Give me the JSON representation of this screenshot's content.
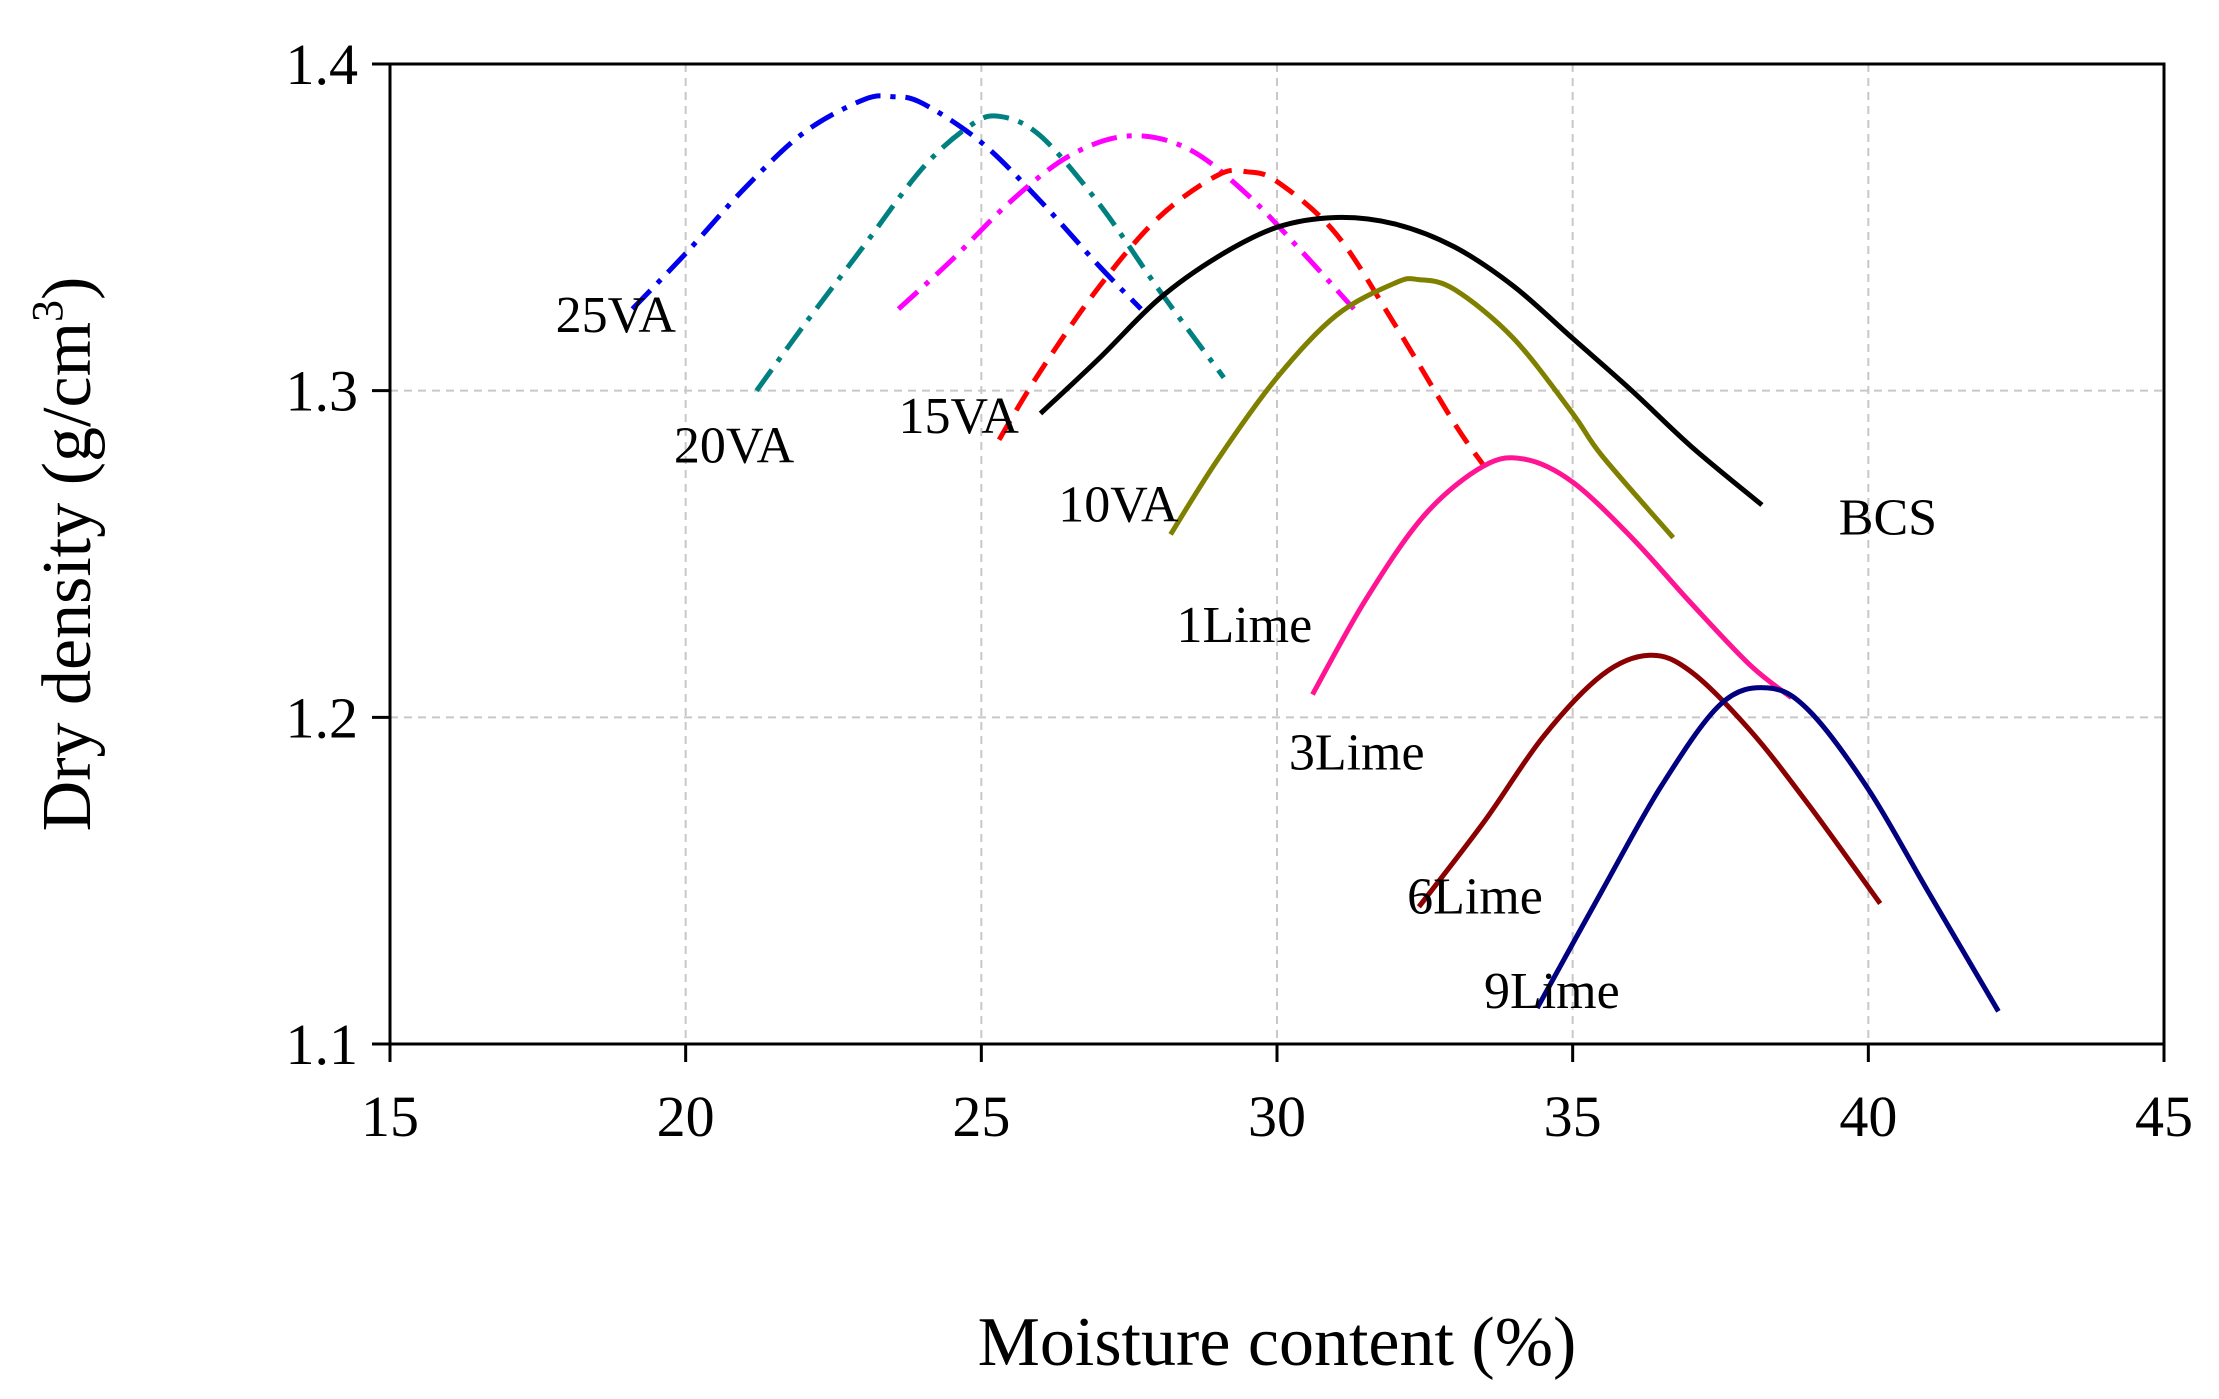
{
  "chart_data": {
    "type": "line",
    "title": "",
    "xlabel": "Moisture content (%)",
    "ylabel_main": "Dry density (g/cm",
    "ylabel_sup": "3",
    "ylabel_close": ")",
    "xlim": [
      15,
      45
    ],
    "ylim": [
      1.1,
      1.4
    ],
    "xticks": [
      15,
      20,
      25,
      30,
      35,
      40,
      45
    ],
    "yticks": [
      1.1,
      1.2,
      1.3,
      1.4
    ],
    "xtick_labels": [
      "15",
      "20",
      "25",
      "30",
      "35",
      "40",
      "45"
    ],
    "ytick_labels": [
      "1.1",
      "1.2",
      "1.3",
      "1.4"
    ],
    "grid": true,
    "series": [
      {
        "name": "25VA",
        "color": "#0000ee",
        "dash": "dashdot",
        "label_at": [
          17.8,
          1.318
        ],
        "x": [
          19.1,
          20.0,
          21.0,
          22.0,
          23.0,
          23.5,
          24.0,
          25.0,
          26.0,
          27.0,
          27.7
        ],
        "y": [
          1.325,
          1.342,
          1.362,
          1.379,
          1.389,
          1.39,
          1.388,
          1.376,
          1.358,
          1.338,
          1.325
        ]
      },
      {
        "name": "20VA",
        "color": "#008080",
        "dash": "dashdot",
        "label_at": [
          19.8,
          1.278
        ],
        "x": [
          21.2,
          22.0,
          23.0,
          24.0,
          24.8,
          25.3,
          26.0,
          27.0,
          28.0,
          29.1
        ],
        "y": [
          1.3,
          1.32,
          1.344,
          1.368,
          1.381,
          1.384,
          1.378,
          1.357,
          1.331,
          1.304
        ]
      },
      {
        "name": "15VA",
        "color": "#ff00ff",
        "dash": "dashdot",
        "label_at": [
          23.6,
          1.287
        ],
        "x": [
          23.6,
          24.5,
          25.5,
          26.5,
          27.5,
          28.5,
          29.5,
          30.5,
          31.3
        ],
        "y": [
          1.325,
          1.34,
          1.358,
          1.372,
          1.378,
          1.374,
          1.36,
          1.341,
          1.325
        ]
      },
      {
        "name": "10VA",
        "color": "#ff0000",
        "dash": "dashed",
        "label_at": [
          26.3,
          1.26
        ],
        "x": [
          25.3,
          26.0,
          27.0,
          28.0,
          29.0,
          29.5,
          30.0,
          31.0,
          32.0,
          33.0,
          33.5
        ],
        "y": [
          1.285,
          1.306,
          1.332,
          1.353,
          1.366,
          1.367,
          1.364,
          1.348,
          1.32,
          1.29,
          1.277
        ]
      },
      {
        "name": "BCS",
        "color": "#000000",
        "dash": "solid",
        "label_at": [
          39.5,
          1.256
        ],
        "x": [
          26.0,
          27.0,
          28.0,
          29.0,
          30.0,
          31.0,
          32.0,
          33.0,
          34.0,
          35.0,
          36.0,
          37.0,
          38.2
        ],
        "y": [
          1.293,
          1.31,
          1.328,
          1.341,
          1.35,
          1.353,
          1.351,
          1.344,
          1.332,
          1.316,
          1.3,
          1.283,
          1.265
        ]
      },
      {
        "name": "1Lime",
        "color": "#808000",
        "dash": "solid",
        "label_at": [
          28.3,
          1.223
        ],
        "x": [
          28.2,
          29.0,
          30.0,
          31.0,
          32.0,
          32.4,
          33.0,
          34.0,
          35.0,
          35.5,
          36.7
        ],
        "y": [
          1.256,
          1.279,
          1.304,
          1.323,
          1.333,
          1.334,
          1.331,
          1.316,
          1.293,
          1.28,
          1.255
        ]
      },
      {
        "name": "3Lime",
        "color": "#ff1493",
        "dash": "solid",
        "label_at": [
          30.2,
          1.184
        ],
        "x": [
          30.6,
          31.5,
          32.5,
          33.5,
          34.2,
          35.0,
          36.0,
          37.0,
          38.0,
          38.7
        ],
        "y": [
          1.207,
          1.236,
          1.262,
          1.277,
          1.279,
          1.272,
          1.255,
          1.235,
          1.216,
          1.206
        ]
      },
      {
        "name": "6Lime",
        "color": "#8b0000",
        "dash": "solid",
        "label_at": [
          32.2,
          1.14
        ],
        "x": [
          32.4,
          33.5,
          34.5,
          35.5,
          36.3,
          37.0,
          38.0,
          39.0,
          40.2
        ],
        "y": [
          1.142,
          1.168,
          1.194,
          1.213,
          1.219,
          1.214,
          1.196,
          1.173,
          1.143
        ]
      },
      {
        "name": "9Lime",
        "color": "#000080",
        "dash": "solid",
        "label_at": [
          33.5,
          1.111
        ],
        "x": [
          34.4,
          35.5,
          36.5,
          37.5,
          38.3,
          39.0,
          40.0,
          41.0,
          42.2
        ],
        "y": [
          1.111,
          1.147,
          1.179,
          1.204,
          1.209,
          1.202,
          1.178,
          1.147,
          1.11
        ]
      }
    ]
  }
}
